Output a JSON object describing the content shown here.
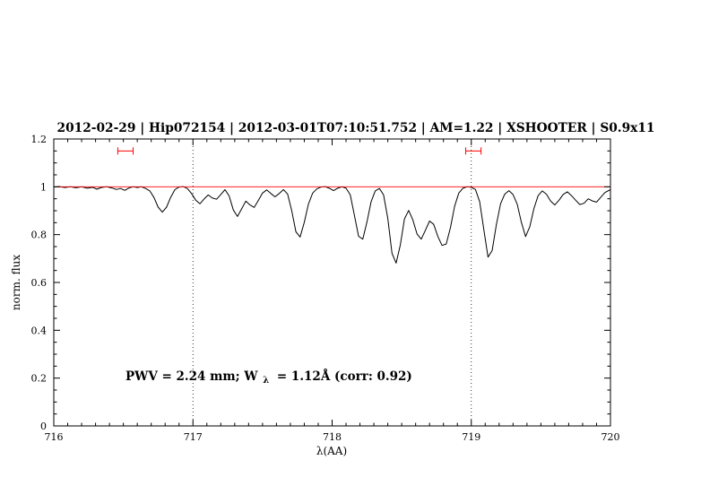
{
  "colors": {
    "title_text": "#0000ee",
    "annotation_text": "#0000ee",
    "axis": "#000000",
    "spectrum": "#000000",
    "model": "#ff0000",
    "marker": "#ff0000"
  },
  "chart_data": {
    "type": "line",
    "title": "2012-02-29 | Hip072154 | 2012-03-01T07:10:51.752 | AM=1.22 | XSHOOTER | S0.9x11",
    "xlabel": "λ(AA)",
    "ylabel": "norm. flux",
    "xlim": [
      716,
      720
    ],
    "ylim": [
      0,
      1.2
    ],
    "grid": false,
    "legend": "none",
    "x_ticks": [
      {
        "value": 716,
        "label": "716"
      },
      {
        "value": 717,
        "label": "717"
      },
      {
        "value": 718,
        "label": "718"
      },
      {
        "value": 719,
        "label": "719"
      },
      {
        "value": 720,
        "label": "720"
      }
    ],
    "y_ticks": [
      {
        "value": 0,
        "label": "0"
      },
      {
        "value": 0.2,
        "label": "0.2"
      },
      {
        "value": 0.4,
        "label": "0.4"
      },
      {
        "value": 0.6,
        "label": "0.6"
      },
      {
        "value": 0.8,
        "label": "0.8"
      },
      {
        "value": 1,
        "label": "1"
      },
      {
        "value": 1.2,
        "label": "1.2"
      }
    ],
    "minor_tick_step_x": 0.1,
    "minor_tick_step_y": 0.05,
    "vlines": [
      717,
      719
    ],
    "marker_color": "#ff0000",
    "band_markers": [
      {
        "x_min": 716.46,
        "x_max": 716.57,
        "y": 1.15
      },
      {
        "x_min": 718.96,
        "x_max": 719.07,
        "y": 1.15
      }
    ],
    "annotation": {
      "text_before_sub": "PWV = 2.24 mm; W",
      "subscript": "λ",
      "text_after_sub": "= 1.12Å (corr: 0.92)",
      "x": 716.52,
      "y": 0.2
    },
    "series": [
      {
        "name": "observed-spectrum",
        "color": "#000000",
        "points": [
          [
            716.0,
            0.999
          ],
          [
            716.04,
            1.001
          ],
          [
            716.08,
            0.997
          ],
          [
            716.12,
            1.0
          ],
          [
            716.16,
            0.996
          ],
          [
            716.2,
            1.0
          ],
          [
            716.24,
            0.994
          ],
          [
            716.28,
            0.998
          ],
          [
            716.31,
            0.99
          ],
          [
            716.34,
            0.997
          ],
          [
            716.38,
            1.0
          ],
          [
            716.42,
            0.995
          ],
          [
            716.45,
            0.989
          ],
          [
            716.48,
            0.993
          ],
          [
            716.51,
            0.985
          ],
          [
            716.54,
            0.995
          ],
          [
            716.57,
            1.0
          ],
          [
            716.6,
            0.997
          ],
          [
            716.63,
            1.0
          ],
          [
            716.66,
            0.993
          ],
          [
            716.69,
            0.983
          ],
          [
            716.72,
            0.955
          ],
          [
            716.75,
            0.915
          ],
          [
            716.78,
            0.894
          ],
          [
            716.81,
            0.915
          ],
          [
            716.84,
            0.956
          ],
          [
            716.87,
            0.988
          ],
          [
            716.9,
            0.999
          ],
          [
            716.93,
            1.001
          ],
          [
            716.96,
            0.993
          ],
          [
            716.99,
            0.972
          ],
          [
            717.02,
            0.944
          ],
          [
            717.05,
            0.929
          ],
          [
            717.08,
            0.949
          ],
          [
            717.11,
            0.966
          ],
          [
            717.14,
            0.953
          ],
          [
            717.17,
            0.948
          ],
          [
            717.2,
            0.968
          ],
          [
            717.23,
            0.988
          ],
          [
            717.26,
            0.962
          ],
          [
            717.29,
            0.903
          ],
          [
            717.32,
            0.876
          ],
          [
            717.35,
            0.908
          ],
          [
            717.38,
            0.94
          ],
          [
            717.41,
            0.924
          ],
          [
            717.44,
            0.914
          ],
          [
            717.47,
            0.943
          ],
          [
            717.5,
            0.974
          ],
          [
            717.53,
            0.987
          ],
          [
            717.56,
            0.972
          ],
          [
            717.59,
            0.958
          ],
          [
            717.62,
            0.972
          ],
          [
            717.65,
            0.988
          ],
          [
            717.68,
            0.97
          ],
          [
            717.71,
            0.899
          ],
          [
            717.74,
            0.812
          ],
          [
            717.77,
            0.79
          ],
          [
            717.8,
            0.851
          ],
          [
            717.83,
            0.928
          ],
          [
            717.86,
            0.974
          ],
          [
            717.89,
            0.991
          ],
          [
            717.92,
            0.999
          ],
          [
            717.95,
            1.001
          ],
          [
            717.98,
            0.994
          ],
          [
            718.01,
            0.984
          ],
          [
            718.04,
            0.994
          ],
          [
            718.07,
            1.0
          ],
          [
            718.1,
            0.994
          ],
          [
            718.13,
            0.967
          ],
          [
            718.16,
            0.882
          ],
          [
            718.19,
            0.793
          ],
          [
            718.22,
            0.781
          ],
          [
            718.25,
            0.852
          ],
          [
            718.28,
            0.938
          ],
          [
            718.31,
            0.983
          ],
          [
            718.34,
            0.993
          ],
          [
            718.37,
            0.966
          ],
          [
            718.4,
            0.868
          ],
          [
            718.43,
            0.722
          ],
          [
            718.46,
            0.681
          ],
          [
            718.49,
            0.757
          ],
          [
            718.52,
            0.866
          ],
          [
            718.55,
            0.901
          ],
          [
            718.58,
            0.862
          ],
          [
            718.61,
            0.803
          ],
          [
            718.64,
            0.781
          ],
          [
            718.67,
            0.818
          ],
          [
            718.7,
            0.857
          ],
          [
            718.73,
            0.843
          ],
          [
            718.76,
            0.792
          ],
          [
            718.79,
            0.755
          ],
          [
            718.82,
            0.761
          ],
          [
            718.85,
            0.829
          ],
          [
            718.88,
            0.918
          ],
          [
            718.91,
            0.974
          ],
          [
            718.94,
            0.994
          ],
          [
            718.97,
            1.0
          ],
          [
            719.0,
            0.998
          ],
          [
            719.03,
            0.989
          ],
          [
            719.06,
            0.938
          ],
          [
            719.09,
            0.822
          ],
          [
            719.12,
            0.706
          ],
          [
            719.15,
            0.733
          ],
          [
            719.18,
            0.841
          ],
          [
            719.21,
            0.929
          ],
          [
            719.24,
            0.969
          ],
          [
            719.27,
            0.984
          ],
          [
            719.3,
            0.968
          ],
          [
            719.33,
            0.927
          ],
          [
            719.36,
            0.852
          ],
          [
            719.39,
            0.792
          ],
          [
            719.42,
            0.833
          ],
          [
            719.45,
            0.909
          ],
          [
            719.48,
            0.963
          ],
          [
            719.51,
            0.983
          ],
          [
            719.54,
            0.969
          ],
          [
            719.57,
            0.941
          ],
          [
            719.6,
            0.924
          ],
          [
            719.63,
            0.944
          ],
          [
            719.66,
            0.968
          ],
          [
            719.69,
            0.979
          ],
          [
            719.72,
            0.963
          ],
          [
            719.75,
            0.944
          ],
          [
            719.78,
            0.926
          ],
          [
            719.81,
            0.931
          ],
          [
            719.84,
            0.95
          ],
          [
            719.87,
            0.941
          ],
          [
            719.9,
            0.936
          ],
          [
            719.93,
            0.956
          ],
          [
            719.96,
            0.976
          ],
          [
            720.0,
            0.988
          ]
        ]
      },
      {
        "name": "model-continuum",
        "color": "#ff0000",
        "points": [
          [
            716.0,
            1.0
          ],
          [
            720.0,
            1.0
          ]
        ]
      }
    ]
  }
}
